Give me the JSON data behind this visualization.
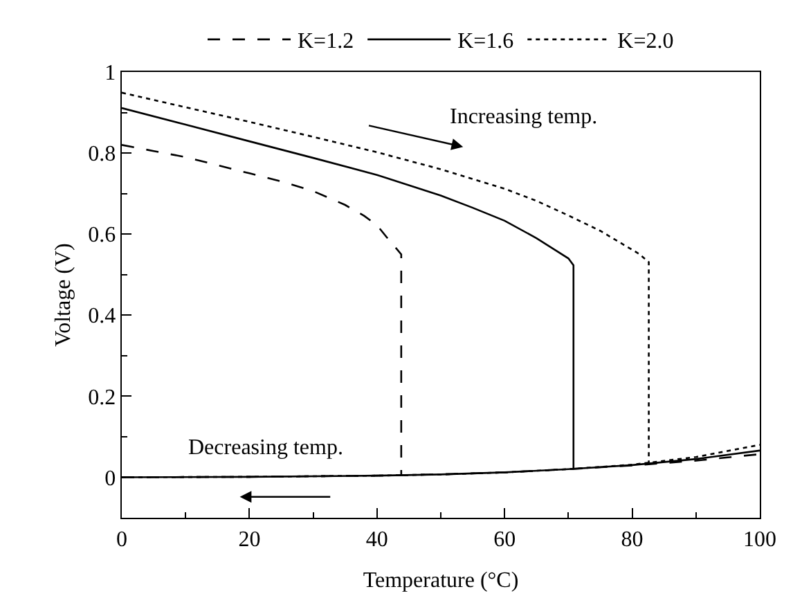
{
  "chart_data": {
    "type": "line",
    "xlabel": "Temperature (°C)",
    "ylabel": "Voltage (V)",
    "xlim": [
      0,
      100
    ],
    "xticks": [
      0,
      20,
      40,
      60,
      80,
      100
    ],
    "ylim": [
      -0.1,
      1
    ],
    "yticks": [
      0,
      0.2,
      0.4,
      0.6,
      0.8,
      1
    ],
    "legend": "top",
    "marker": "none",
    "annotations": [
      "Increasing temp.",
      "Decreasing temp."
    ],
    "series": [
      {
        "name": "K=1.2",
        "color": "#000000",
        "line_style": "dashed",
        "x": [
          0,
          5,
          10,
          15,
          20,
          25,
          30,
          35,
          38,
          40,
          42,
          43,
          43.8,
          43.8
        ],
        "values": [
          0.82,
          0.805,
          0.79,
          0.77,
          0.75,
          0.73,
          0.706,
          0.672,
          0.645,
          0.622,
          0.583,
          0.565,
          0.55,
          0.005
        ]
      },
      {
        "name": "K=1.6",
        "color": "#000000",
        "line_style": "solid",
        "x": [
          0,
          10,
          20,
          30,
          40,
          50,
          55,
          60,
          65,
          68,
          70,
          70.8,
          70.8
        ],
        "values": [
          0.911,
          0.87,
          0.829,
          0.788,
          0.746,
          0.695,
          0.665,
          0.633,
          0.59,
          0.56,
          0.54,
          0.523,
          0.02
        ]
      },
      {
        "name": "K=2.0",
        "color": "#000000",
        "line_style": "dotted",
        "x": [
          0,
          10,
          20,
          30,
          40,
          50,
          60,
          65,
          70,
          75,
          78,
          81,
          82.6,
          82.6
        ],
        "values": [
          0.949,
          0.913,
          0.877,
          0.84,
          0.802,
          0.76,
          0.712,
          0.682,
          0.646,
          0.608,
          0.58,
          0.552,
          0.531,
          0.034
        ]
      },
      {
        "color": "#000000",
        "line_style": "dashed",
        "x": [
          0,
          20,
          40,
          50,
          60,
          70,
          80,
          90,
          100
        ],
        "values": [
          0,
          0.001,
          0.004,
          0.007,
          0.012,
          0.02,
          0.029,
          0.041,
          0.057
        ]
      },
      {
        "color": "#000000",
        "line_style": "solid",
        "x": [
          0,
          20,
          40,
          50,
          60,
          70,
          80,
          90,
          100
        ],
        "values": [
          0,
          0.001,
          0.004,
          0.007,
          0.012,
          0.02,
          0.03,
          0.045,
          0.066
        ]
      },
      {
        "color": "#000000",
        "line_style": "dotted",
        "x": [
          0,
          20,
          40,
          50,
          60,
          70,
          80,
          90,
          100
        ],
        "values": [
          0,
          0.001,
          0.004,
          0.007,
          0.012,
          0.02,
          0.031,
          0.05,
          0.08
        ]
      }
    ]
  }
}
